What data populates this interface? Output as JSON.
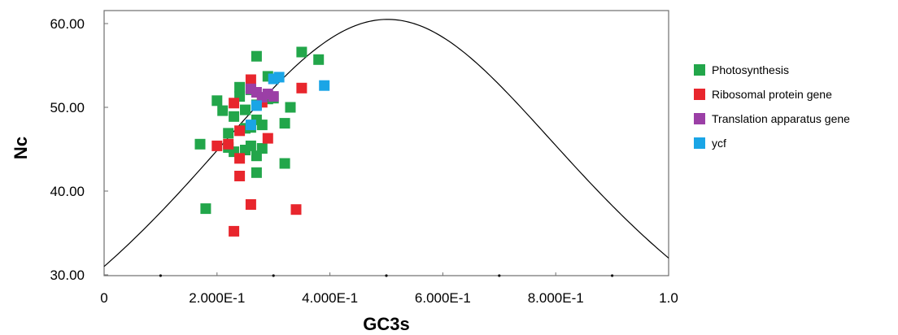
{
  "chart_data": {
    "type": "scatter",
    "xlabel": "GC3s",
    "ylabel": "Nc",
    "xlim": [
      0,
      1.0
    ],
    "ylim": [
      30,
      61
    ],
    "x_ticks": [
      {
        "value": 0,
        "label": "0"
      },
      {
        "value": 0.2,
        "label": "2.000E-1"
      },
      {
        "value": 0.4,
        "label": "4.000E-1"
      },
      {
        "value": 0.6,
        "label": "6.000E-1"
      },
      {
        "value": 0.8,
        "label": "8.000E-1"
      },
      {
        "value": 1.0,
        "label": "1.0"
      }
    ],
    "y_ticks": [
      {
        "value": 30,
        "label": "30.00"
      },
      {
        "value": 40,
        "label": "40.00"
      },
      {
        "value": 50,
        "label": "50.00"
      },
      {
        "value": 60,
        "label": "60.00"
      }
    ],
    "grid": false,
    "legend_position": "right",
    "expected_curve": "Nc = 2 + GC3s + 29/(GC3s^2 + (1-GC3s)^2)",
    "series": [
      {
        "name": "Photosynthesis",
        "color": "#22a64a",
        "points": [
          [
            0.17,
            45.6
          ],
          [
            0.18,
            37.9
          ],
          [
            0.2,
            50.8
          ],
          [
            0.21,
            49.6
          ],
          [
            0.22,
            46.9
          ],
          [
            0.22,
            45.2
          ],
          [
            0.23,
            48.9
          ],
          [
            0.23,
            44.7
          ],
          [
            0.24,
            52.4
          ],
          [
            0.24,
            51.3
          ],
          [
            0.25,
            49.7
          ],
          [
            0.25,
            47.5
          ],
          [
            0.25,
            44.9
          ],
          [
            0.26,
            52.1
          ],
          [
            0.26,
            45.4
          ],
          [
            0.26,
            47.6
          ],
          [
            0.27,
            56.1
          ],
          [
            0.27,
            50.3
          ],
          [
            0.27,
            48.5
          ],
          [
            0.27,
            42.2
          ],
          [
            0.27,
            44.2
          ],
          [
            0.28,
            47.9
          ],
          [
            0.28,
            45.1
          ],
          [
            0.29,
            51.0
          ],
          [
            0.29,
            53.7
          ],
          [
            0.3,
            51.1
          ],
          [
            0.32,
            48.1
          ],
          [
            0.32,
            43.3
          ],
          [
            0.33,
            50.0
          ],
          [
            0.35,
            56.6
          ],
          [
            0.38,
            55.7
          ]
        ]
      },
      {
        "name": "Ribosomal protein gene",
        "color": "#e8262d",
        "points": [
          [
            0.2,
            45.4
          ],
          [
            0.22,
            45.6
          ],
          [
            0.23,
            50.5
          ],
          [
            0.24,
            47.2
          ],
          [
            0.24,
            41.8
          ],
          [
            0.24,
            43.9
          ],
          [
            0.23,
            35.2
          ],
          [
            0.26,
            53.3
          ],
          [
            0.26,
            38.4
          ],
          [
            0.29,
            46.3
          ],
          [
            0.34,
            37.8
          ],
          [
            0.35,
            52.3
          ],
          [
            0.28,
            50.6
          ]
        ]
      },
      {
        "name": "Translation apparatus gene",
        "color": "#9b3fa6",
        "points": [
          [
            0.26,
            52.2
          ],
          [
            0.27,
            51.8
          ],
          [
            0.28,
            51.2
          ],
          [
            0.29,
            51.6
          ],
          [
            0.3,
            51.3
          ]
        ]
      },
      {
        "name": "ycf",
        "color": "#1aa5e6",
        "points": [
          [
            0.26,
            47.9
          ],
          [
            0.27,
            50.2
          ],
          [
            0.3,
            53.4
          ],
          [
            0.31,
            53.6
          ],
          [
            0.39,
            52.6
          ]
        ]
      }
    ]
  }
}
